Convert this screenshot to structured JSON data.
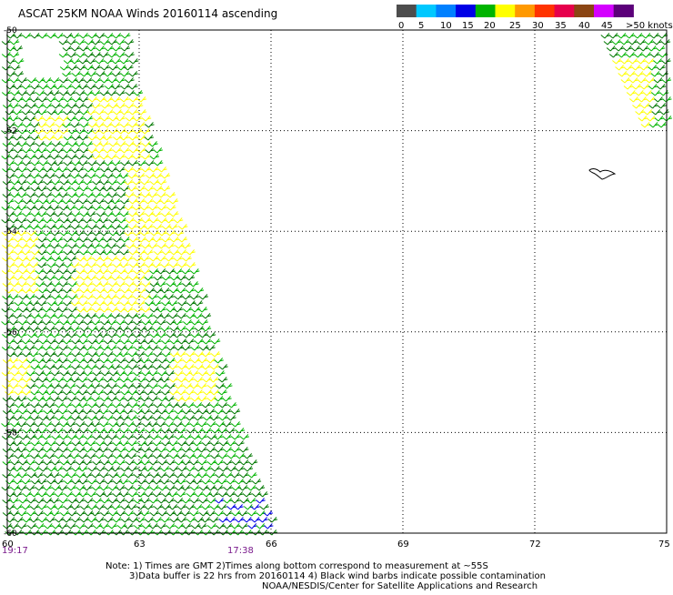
{
  "header": {
    "title": "ASCAT 25KM NOAA Winds 20160114 ascending"
  },
  "color_scale": {
    "unit": "knots",
    "bins": [
      {
        "label": "0",
        "color": "#4d4d4d"
      },
      {
        "label": "5",
        "color": "#00c8ff"
      },
      {
        "label": "10",
        "color": "#0080ff"
      },
      {
        "label": "15",
        "color": "#0000e6"
      },
      {
        "label": "20",
        "color": "#00b400"
      },
      {
        "label": "25",
        "color": "#ffff00"
      },
      {
        "label": "30",
        "color": "#ff9900"
      },
      {
        "label": "35",
        "color": "#ff3300"
      },
      {
        "label": "40",
        "color": "#e6004c"
      },
      {
        "label": "45",
        "color": "#8b4513"
      },
      {
        "label": ">50",
        "color": "#d400ff"
      },
      {
        "label": "",
        "color": "#5c007a"
      }
    ],
    "end_label": ">50 knots"
  },
  "map": {
    "lon_min": 60,
    "lon_max": 75,
    "lat_top": -50,
    "lat_bottom": -60,
    "lat_labels": [
      "-50",
      "-52",
      "-54",
      "-56",
      "-58",
      "-60"
    ],
    "lon_labels": [
      "60",
      "63",
      "66",
      "69",
      "72",
      "75"
    ],
    "time_labels": [
      "19:17",
      "17:38"
    ],
    "colors": {
      "green_dark": "#007800",
      "green": "#00b400",
      "yellow": "#ffff00",
      "blue": "#0000e6"
    }
  },
  "notes": {
    "line1": "Note: 1) Times are GMT 2)Times along bottom correspond to measurement at ~55S",
    "line2": "3)Data buffer is 22 hrs from 20160114 4) Black wind barbs indicate possible contamination",
    "line3": "NOAA/NESDIS/Center for Satellite Applications and Research"
  }
}
